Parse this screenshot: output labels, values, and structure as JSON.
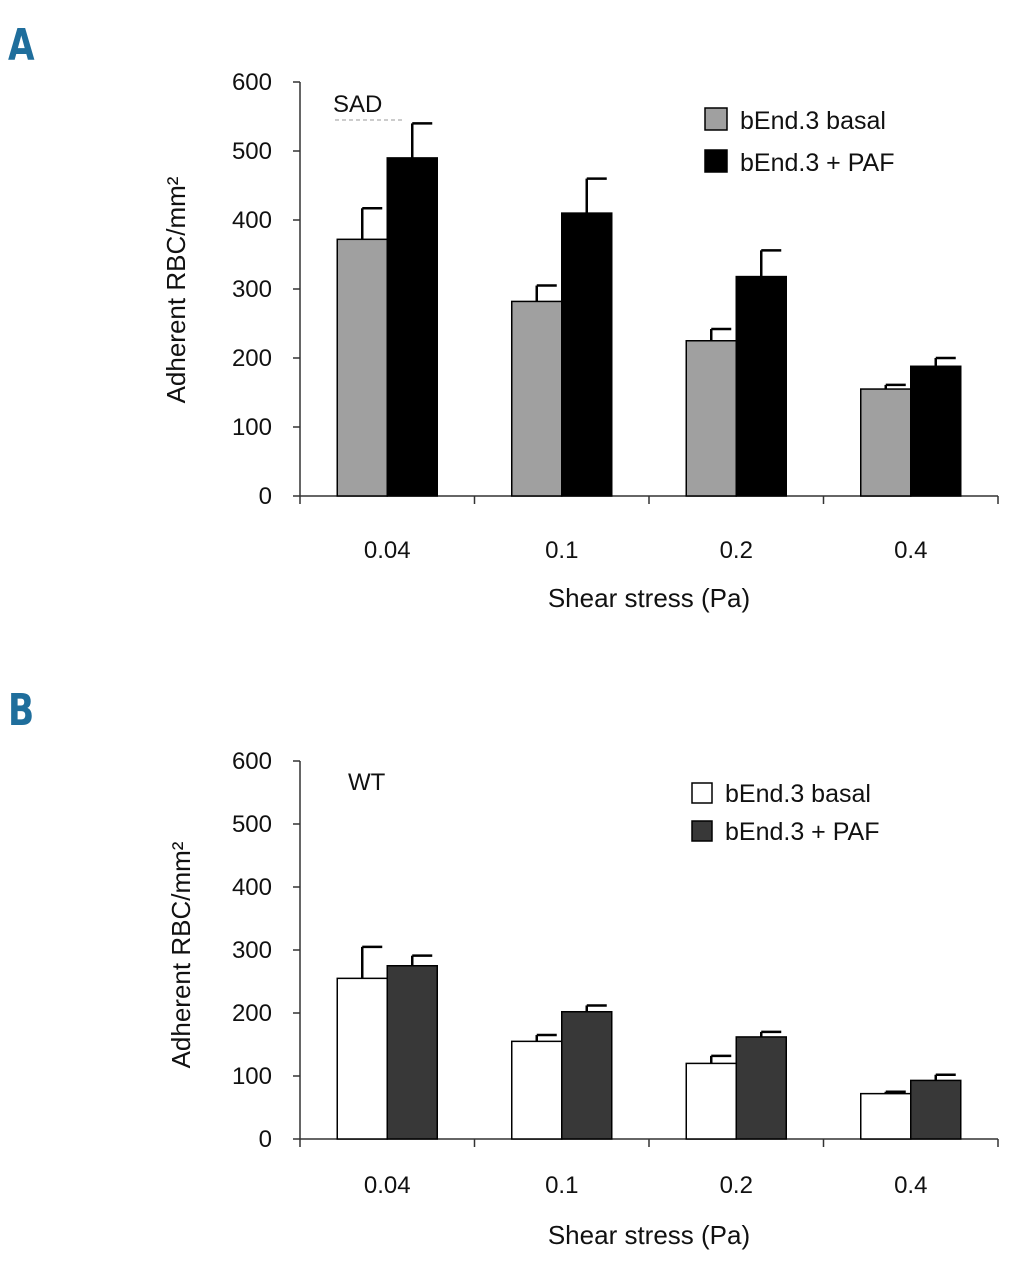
{
  "panels": [
    {
      "letter": "A",
      "annotation": "SAD",
      "legend_labels": [
        "bEnd.3 basal",
        "bEnd.3 + PAF"
      ]
    },
    {
      "letter": "B",
      "annotation": "WT",
      "legend_labels": [
        "bEnd.3 basal",
        "bEnd.3 + PAF"
      ]
    }
  ],
  "chart_data": [
    {
      "type": "bar",
      "panel": "A",
      "annotation": "SAD",
      "categories": [
        "0.04",
        "0.1",
        "0.2",
        "0.4"
      ],
      "series": [
        {
          "name": "bEnd.3 basal",
          "color": "#a0a0a0",
          "values": [
            372,
            282,
            225,
            155
          ],
          "errors": [
            45,
            23,
            17,
            6
          ]
        },
        {
          "name": "bEnd.3 + PAF",
          "color": "#000000",
          "values": [
            490,
            410,
            318,
            188
          ],
          "errors": [
            50,
            50,
            38,
            12
          ]
        }
      ],
      "xlabel": "Shear stress (Pa)",
      "ylabel": "Adherent RBC/mm²",
      "ylim": [
        0,
        600
      ],
      "yticks": [
        "0",
        "100",
        "200",
        "300",
        "400",
        "500",
        "600"
      ],
      "legend_position": "top-right",
      "grid": false
    },
    {
      "type": "bar",
      "panel": "B",
      "annotation": "WT",
      "categories": [
        "0.04",
        "0.1",
        "0.2",
        "0.4"
      ],
      "series": [
        {
          "name": "bEnd.3 basal",
          "color": "#ffffff",
          "values": [
            255,
            155,
            120,
            72
          ],
          "errors": [
            50,
            10,
            12,
            3
          ]
        },
        {
          "name": "bEnd.3 + PAF",
          "color": "#383838",
          "values": [
            275,
            202,
            162,
            93
          ],
          "errors": [
            16,
            10,
            8,
            9
          ]
        }
      ],
      "xlabel": "Shear stress (Pa)",
      "ylabel": "Adherent RBC/mm²",
      "ylim": [
        0,
        600
      ],
      "yticks": [
        "0",
        "100",
        "200",
        "300",
        "400",
        "500",
        "600"
      ],
      "legend_position": "top-right",
      "grid": false
    }
  ]
}
